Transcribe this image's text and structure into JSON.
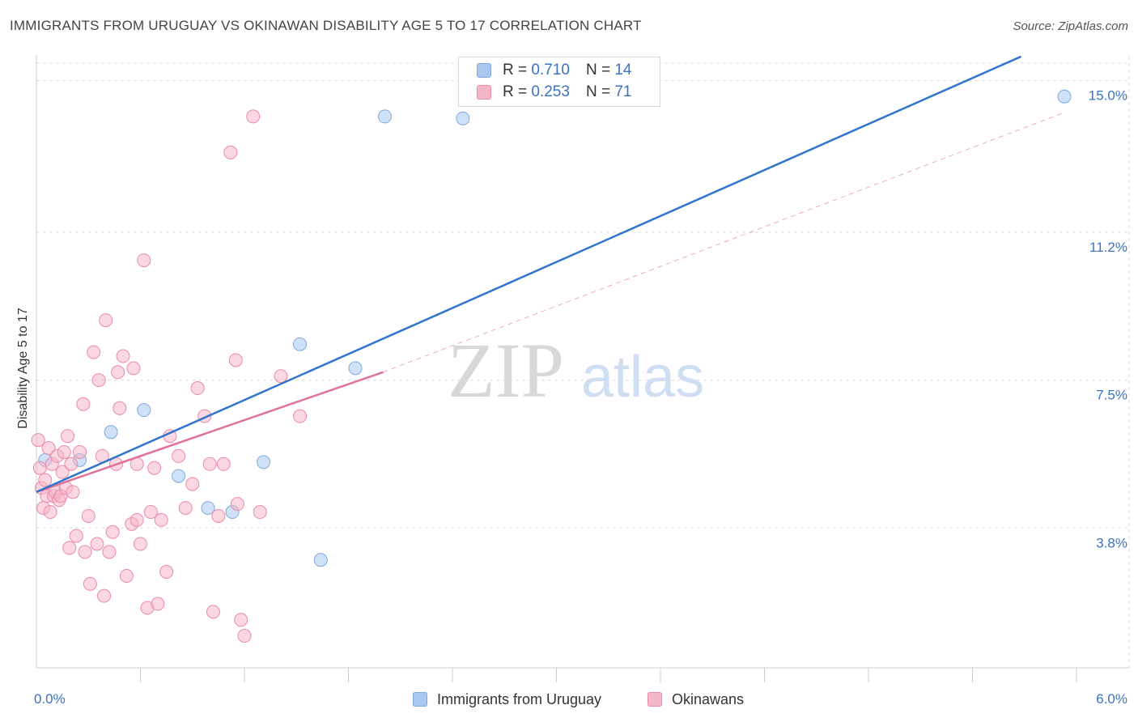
{
  "header": {
    "title": "IMMIGRANTS FROM URUGUAY VS OKINAWAN DISABILITY AGE 5 TO 17 CORRELATION CHART",
    "source": "Source: ZipAtlas.com"
  },
  "watermark": {
    "zip": "ZIP",
    "atlas": "atlas"
  },
  "legend": {
    "r_label": "R =",
    "n_label": "N =",
    "rows": [
      {
        "r": "0.710",
        "n": "14",
        "color": "#a8c8ef"
      },
      {
        "r": "0.253",
        "n": "71",
        "color": "#f5b6c8"
      }
    ]
  },
  "chart_data": {
    "type": "scatter",
    "title": "IMMIGRANTS FROM URUGUAY VS OKINAWAN DISABILITY AGE 5 TO 17 CORRELATION CHART",
    "xlabel": "",
    "ylabel": "Disability Age 5 to 17",
    "xlim": [
      0,
      6.0
    ],
    "ylim": [
      0.3,
      15.8
    ],
    "x_tick_labels": [
      {
        "value": 0,
        "label": "0.0%"
      },
      {
        "value": 6.0,
        "label": "6.0%"
      }
    ],
    "y_tick_labels": [
      {
        "value": 3.8,
        "label": "3.8%"
      },
      {
        "value": 7.5,
        "label": "7.5%"
      },
      {
        "value": 11.2,
        "label": "11.2%"
      },
      {
        "value": 15.0,
        "label": "15.0%"
      }
    ],
    "grid": true,
    "legend_position": "top-center",
    "series": [
      {
        "name": "Immigrants from Uruguay",
        "color": "#a8c8ef",
        "stroke": "#7fa9dd",
        "line_color": "#2f74cf",
        "trend": {
          "x": [
            0,
            5.68
          ],
          "y": [
            4.7,
            15.6
          ]
        },
        "points": [
          {
            "x": 0.05,
            "y": 5.5
          },
          {
            "x": 0.25,
            "y": 5.5
          },
          {
            "x": 0.43,
            "y": 6.2
          },
          {
            "x": 0.62,
            "y": 6.75
          },
          {
            "x": 0.82,
            "y": 5.1
          },
          {
            "x": 0.99,
            "y": 4.3
          },
          {
            "x": 1.13,
            "y": 4.2
          },
          {
            "x": 1.31,
            "y": 5.45
          },
          {
            "x": 1.52,
            "y": 8.4
          },
          {
            "x": 1.64,
            "y": 3.0
          },
          {
            "x": 1.84,
            "y": 7.8
          },
          {
            "x": 2.01,
            "y": 14.1
          },
          {
            "x": 2.46,
            "y": 14.05
          },
          {
            "x": 5.93,
            "y": 14.6
          }
        ]
      },
      {
        "name": "Okinawans",
        "color": "#f5b6c8",
        "stroke": "#e98aa8",
        "line_color": "#e0739a",
        "trend": {
          "x": [
            0,
            2.0
          ],
          "y": [
            4.7,
            7.7
          ]
        },
        "trend_ext": {
          "x": [
            2.0,
            5.93
          ],
          "y": [
            7.7,
            14.2
          ]
        },
        "points": [
          {
            "x": 0.01,
            "y": 6.0
          },
          {
            "x": 0.02,
            "y": 5.3
          },
          {
            "x": 0.03,
            "y": 4.8
          },
          {
            "x": 0.04,
            "y": 4.3
          },
          {
            "x": 0.05,
            "y": 5.0
          },
          {
            "x": 0.06,
            "y": 4.6
          },
          {
            "x": 0.07,
            "y": 5.8
          },
          {
            "x": 0.08,
            "y": 4.2
          },
          {
            "x": 0.09,
            "y": 5.4
          },
          {
            "x": 0.1,
            "y": 4.6
          },
          {
            "x": 0.11,
            "y": 4.7
          },
          {
            "x": 0.12,
            "y": 5.6
          },
          {
            "x": 0.13,
            "y": 4.5
          },
          {
            "x": 0.14,
            "y": 4.6
          },
          {
            "x": 0.15,
            "y": 5.2
          },
          {
            "x": 0.16,
            "y": 5.7
          },
          {
            "x": 0.17,
            "y": 4.8
          },
          {
            "x": 0.18,
            "y": 6.1
          },
          {
            "x": 0.19,
            "y": 3.3
          },
          {
            "x": 0.2,
            "y": 5.4
          },
          {
            "x": 0.21,
            "y": 4.7
          },
          {
            "x": 0.23,
            "y": 3.6
          },
          {
            "x": 0.25,
            "y": 5.7
          },
          {
            "x": 0.27,
            "y": 6.9
          },
          {
            "x": 0.28,
            "y": 3.2
          },
          {
            "x": 0.3,
            "y": 4.1
          },
          {
            "x": 0.31,
            "y": 2.4
          },
          {
            "x": 0.33,
            "y": 8.2
          },
          {
            "x": 0.35,
            "y": 3.4
          },
          {
            "x": 0.36,
            "y": 7.5
          },
          {
            "x": 0.38,
            "y": 5.6
          },
          {
            "x": 0.39,
            "y": 2.1
          },
          {
            "x": 0.4,
            "y": 9.0
          },
          {
            "x": 0.42,
            "y": 3.2
          },
          {
            "x": 0.44,
            "y": 3.7
          },
          {
            "x": 0.46,
            "y": 5.4
          },
          {
            "x": 0.47,
            "y": 7.7
          },
          {
            "x": 0.48,
            "y": 6.8
          },
          {
            "x": 0.5,
            "y": 8.1
          },
          {
            "x": 0.52,
            "y": 2.6
          },
          {
            "x": 0.55,
            "y": 3.9
          },
          {
            "x": 0.56,
            "y": 7.8
          },
          {
            "x": 0.58,
            "y": 4.0
          },
          {
            "x": 0.6,
            "y": 3.4
          },
          {
            "x": 0.62,
            "y": 10.5
          },
          {
            "x": 0.64,
            "y": 1.8
          },
          {
            "x": 0.66,
            "y": 4.2
          },
          {
            "x": 0.68,
            "y": 5.3
          },
          {
            "x": 0.7,
            "y": 1.9
          },
          {
            "x": 0.72,
            "y": 4.0
          },
          {
            "x": 0.75,
            "y": 2.7
          },
          {
            "x": 0.77,
            "y": 6.1
          },
          {
            "x": 0.82,
            "y": 5.6
          },
          {
            "x": 0.86,
            "y": 4.3
          },
          {
            "x": 0.9,
            "y": 4.9
          },
          {
            "x": 0.93,
            "y": 7.3
          },
          {
            "x": 0.97,
            "y": 6.6
          },
          {
            "x": 1.0,
            "y": 5.4
          },
          {
            "x": 1.02,
            "y": 1.7
          },
          {
            "x": 1.05,
            "y": 4.1
          },
          {
            "x": 1.08,
            "y": 5.4
          },
          {
            "x": 1.12,
            "y": 13.2
          },
          {
            "x": 1.15,
            "y": 8.0
          },
          {
            "x": 1.18,
            "y": 1.5
          },
          {
            "x": 1.2,
            "y": 1.1
          },
          {
            "x": 1.25,
            "y": 14.1
          },
          {
            "x": 1.29,
            "y": 4.2
          },
          {
            "x": 1.41,
            "y": 7.6
          },
          {
            "x": 1.52,
            "y": 6.6
          },
          {
            "x": 1.16,
            "y": 4.4
          },
          {
            "x": 0.58,
            "y": 5.4
          }
        ]
      }
    ]
  }
}
